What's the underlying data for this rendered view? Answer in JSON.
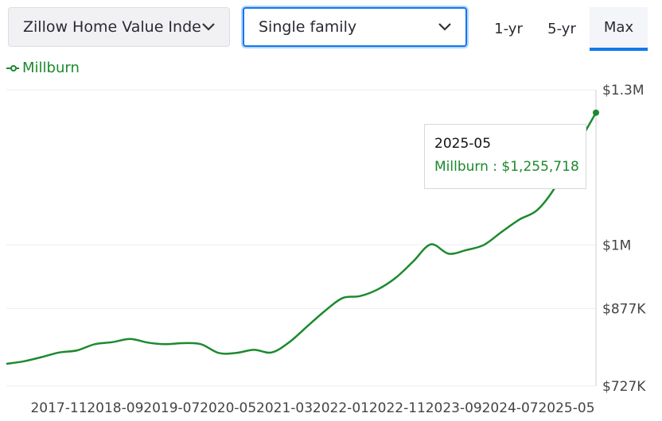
{
  "controls": {
    "metric_select": {
      "value": "Zillow Home Value Index"
    },
    "home_type_select": {
      "value": "Single family"
    },
    "range_buttons": [
      {
        "label": "1-yr",
        "active": false
      },
      {
        "label": "5-yr",
        "active": false
      },
      {
        "label": "Max",
        "active": true
      }
    ]
  },
  "tooltip": {
    "date": "2025-05",
    "series": "Millburn",
    "value": "$1,255,718"
  },
  "colors": {
    "series": "#1b8a2e",
    "accent": "#1177ee"
  },
  "chart_data": {
    "type": "line",
    "series": [
      {
        "name": "Millburn",
        "points": [
          [
            "2017-01",
            770
          ],
          [
            "2017-04",
            775
          ],
          [
            "2017-07",
            783
          ],
          [
            "2017-10",
            792
          ],
          [
            "2018-01",
            796
          ],
          [
            "2018-04",
            808
          ],
          [
            "2018-07",
            812
          ],
          [
            "2018-10",
            818
          ],
          [
            "2019-01",
            811
          ],
          [
            "2019-04",
            808
          ],
          [
            "2019-07",
            810
          ],
          [
            "2019-10",
            808
          ],
          [
            "2020-01",
            791
          ],
          [
            "2020-04",
            791
          ],
          [
            "2020-07",
            797
          ],
          [
            "2020-10",
            792
          ],
          [
            "2021-01",
            812
          ],
          [
            "2021-04",
            842
          ],
          [
            "2021-07",
            872
          ],
          [
            "2021-10",
            897
          ],
          [
            "2022-01",
            901
          ],
          [
            "2022-04",
            914
          ],
          [
            "2022-07",
            936
          ],
          [
            "2022-10",
            968
          ],
          [
            "2023-01",
            1001
          ],
          [
            "2023-04",
            983
          ],
          [
            "2023-07",
            990
          ],
          [
            "2023-10",
            1000
          ],
          [
            "2024-01",
            1025
          ],
          [
            "2024-04",
            1049
          ],
          [
            "2024-07",
            1067
          ],
          [
            "2024-10",
            1110
          ],
          [
            "2025-01",
            1175
          ],
          [
            "2025-05",
            1255.7
          ]
        ]
      }
    ],
    "x_tick_labels": [
      "2017-11",
      "2018-09",
      "2019-07",
      "2020-05",
      "2021-03",
      "2022-01",
      "2022-11",
      "2023-09",
      "2024-07",
      "2025-05"
    ],
    "y_ticks": [
      {
        "value": 1300,
        "label": "$1.3M"
      },
      {
        "value": 1000,
        "label": "$1M"
      },
      {
        "value": 877,
        "label": "$877K"
      },
      {
        "value": 727,
        "label": "$727K"
      }
    ],
    "xlim": [
      "2017-01",
      "2025-05"
    ],
    "ylim": [
      727,
      1300
    ],
    "grid": true,
    "legend": "top-left"
  }
}
